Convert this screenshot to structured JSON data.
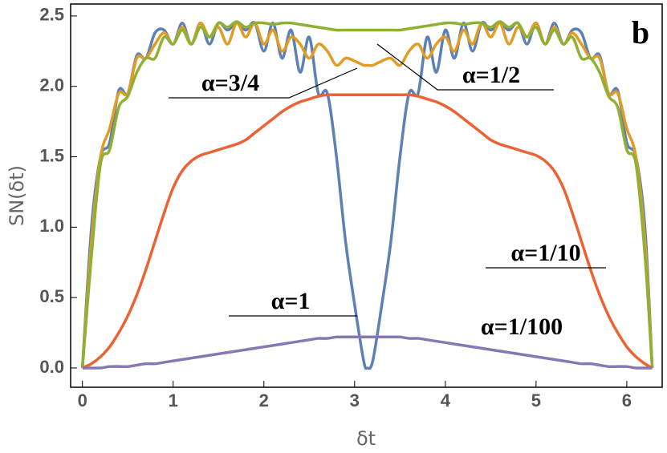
{
  "chart_data": {
    "type": "line",
    "panel_label": "b",
    "xlabel": "δt",
    "ylabel": "SN(δt)",
    "xlim": [
      -0.13,
      6.39
    ],
    "ylim": [
      -0.137,
      2.585
    ],
    "xticks": [
      0,
      1,
      2,
      3,
      4,
      5,
      6
    ],
    "yticks": [
      {
        "value": 0,
        "label": "0.0"
      },
      0.5,
      {
        "value": 1,
        "label": "1.0"
      },
      1.5,
      {
        "value": 2,
        "label": "2.0"
      },
      2.5
    ],
    "x": [
      0,
      0.1,
      0.2,
      0.3,
      0.4,
      0.5,
      0.6,
      0.7,
      0.8,
      0.9,
      1,
      1.1,
      1.2,
      1.3,
      1.4,
      1.5,
      1.6,
      1.7,
      1.8,
      1.9,
      2,
      2.1,
      2.2,
      2.3,
      2.4,
      2.5,
      2.6,
      2.7,
      2.8,
      2.9,
      3,
      3.1,
      3.14,
      3.2,
      3.3,
      3.4,
      3.5,
      3.6,
      3.7,
      3.8,
      3.9,
      4,
      4.1,
      4.2,
      4.3,
      4.4,
      4.5,
      4.6,
      4.7,
      4.8,
      4.9,
      5,
      5.1,
      5.2,
      5.3,
      5.4,
      5.5,
      5.6,
      5.7,
      5.8,
      5.9,
      6,
      6.1,
      6.2,
      6.28
    ],
    "series": [
      {
        "name": "α=1",
        "color": "#5e81b5",
        "values": [
          0,
          1.0,
          1.5,
          1.6,
          1.97,
          1.95,
          2.22,
          2.2,
          2.38,
          2.4,
          2.3,
          2.45,
          2.3,
          2.45,
          2.3,
          2.45,
          2.4,
          2.45,
          2.4,
          2.45,
          2.25,
          2.45,
          2.2,
          2.4,
          2.1,
          2.35,
          1.95,
          1.95,
          1.5,
          0.9,
          0.45,
          0.05,
          0,
          0.05,
          0.45,
          0.9,
          1.5,
          1.95,
          1.95,
          2.35,
          2.1,
          2.4,
          2.2,
          2.45,
          2.25,
          2.45,
          2.4,
          2.45,
          2.4,
          2.45,
          2.3,
          2.45,
          2.3,
          2.45,
          2.3,
          2.4,
          2.38,
          2.2,
          2.22,
          1.95,
          1.97,
          1.6,
          1.5,
          1.0,
          0
        ]
      },
      {
        "name": "α=3/4",
        "color": "#e19c24",
        "values": [
          0,
          0.9,
          1.5,
          1.7,
          1.95,
          1.95,
          2.2,
          2.2,
          2.3,
          2.38,
          2.3,
          2.42,
          2.3,
          2.45,
          2.35,
          2.42,
          2.3,
          2.45,
          2.35,
          2.45,
          2.3,
          2.4,
          2.25,
          2.35,
          2.3,
          2.2,
          2.3,
          2.25,
          2.15,
          2.2,
          2.18,
          2.15,
          2.15,
          2.15,
          2.18,
          2.2,
          2.15,
          2.25,
          2.3,
          2.2,
          2.3,
          2.35,
          2.25,
          2.4,
          2.3,
          2.45,
          2.35,
          2.45,
          2.3,
          2.42,
          2.35,
          2.45,
          2.3,
          2.42,
          2.3,
          2.38,
          2.3,
          2.2,
          2.2,
          1.95,
          1.95,
          1.7,
          1.5,
          0.9,
          0
        ]
      },
      {
        "name": "α=1/2",
        "color": "#8fb032",
        "values": [
          0,
          0.8,
          1.45,
          1.55,
          1.85,
          1.93,
          2.1,
          2.2,
          2.2,
          2.35,
          2.3,
          2.4,
          2.3,
          2.42,
          2.35,
          2.45,
          2.42,
          2.46,
          2.42,
          2.45,
          2.45,
          2.44,
          2.45,
          2.45,
          2.44,
          2.43,
          2.42,
          2.41,
          2.4,
          2.4,
          2.4,
          2.4,
          2.4,
          2.4,
          2.4,
          2.4,
          2.4,
          2.41,
          2.42,
          2.43,
          2.44,
          2.45,
          2.45,
          2.44,
          2.45,
          2.45,
          2.42,
          2.46,
          2.42,
          2.45,
          2.35,
          2.42,
          2.3,
          2.4,
          2.3,
          2.35,
          2.2,
          2.2,
          2.1,
          1.93,
          1.85,
          1.55,
          1.45,
          0.8,
          0
        ]
      },
      {
        "name": "α=1/10",
        "color": "#eb6235",
        "values": [
          0,
          0.03,
          0.08,
          0.15,
          0.25,
          0.37,
          0.52,
          0.7,
          0.9,
          1.1,
          1.28,
          1.4,
          1.47,
          1.51,
          1.53,
          1.55,
          1.57,
          1.59,
          1.62,
          1.67,
          1.72,
          1.77,
          1.82,
          1.86,
          1.89,
          1.91,
          1.93,
          1.94,
          1.94,
          1.94,
          1.94,
          1.94,
          1.94,
          1.94,
          1.94,
          1.94,
          1.94,
          1.94,
          1.93,
          1.91,
          1.89,
          1.86,
          1.82,
          1.77,
          1.72,
          1.67,
          1.62,
          1.59,
          1.57,
          1.55,
          1.53,
          1.51,
          1.47,
          1.4,
          1.28,
          1.1,
          0.9,
          0.7,
          0.52,
          0.37,
          0.25,
          0.15,
          0.08,
          0.03,
          0
        ]
      },
      {
        "name": "α=1/100",
        "color": "#8778b3",
        "values": [
          0,
          0,
          0,
          0.01,
          0.01,
          0.01,
          0.02,
          0.03,
          0.03,
          0.04,
          0.05,
          0.06,
          0.07,
          0.08,
          0.09,
          0.1,
          0.11,
          0.12,
          0.13,
          0.14,
          0.15,
          0.16,
          0.17,
          0.18,
          0.19,
          0.2,
          0.21,
          0.21,
          0.22,
          0.22,
          0.22,
          0.22,
          0.22,
          0.22,
          0.22,
          0.22,
          0.22,
          0.21,
          0.21,
          0.2,
          0.19,
          0.18,
          0.17,
          0.16,
          0.15,
          0.14,
          0.13,
          0.12,
          0.11,
          0.1,
          0.09,
          0.08,
          0.07,
          0.06,
          0.05,
          0.04,
          0.03,
          0.03,
          0.02,
          0.01,
          0.01,
          0.01,
          0,
          0,
          0
        ]
      }
    ]
  }
}
